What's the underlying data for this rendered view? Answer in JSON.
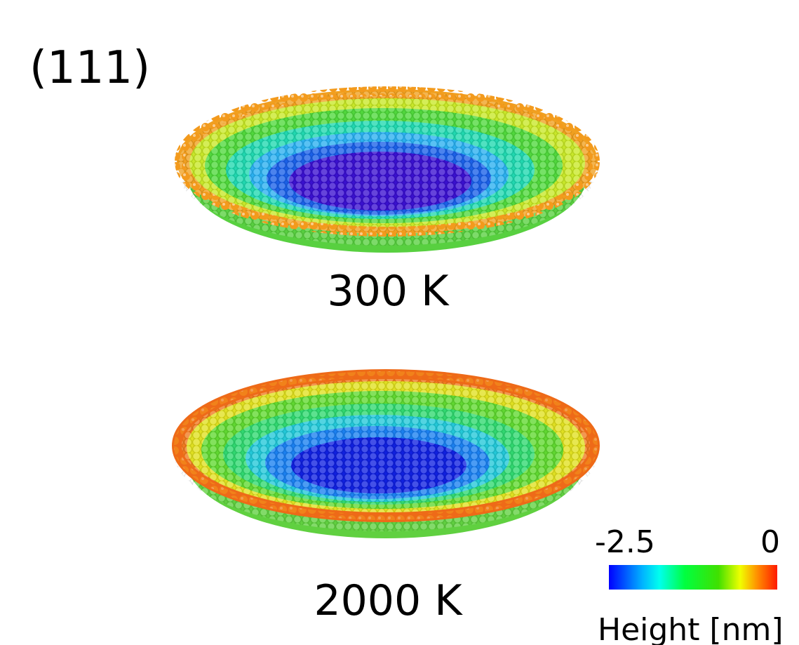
{
  "figure": {
    "panel_label": "(111)",
    "panels": [
      {
        "label": "300 K"
      },
      {
        "label": "2000 K"
      }
    ],
    "colorbar": {
      "min_label": "-2.5",
      "max_label": "0",
      "title": "Height [nm]"
    }
  }
}
